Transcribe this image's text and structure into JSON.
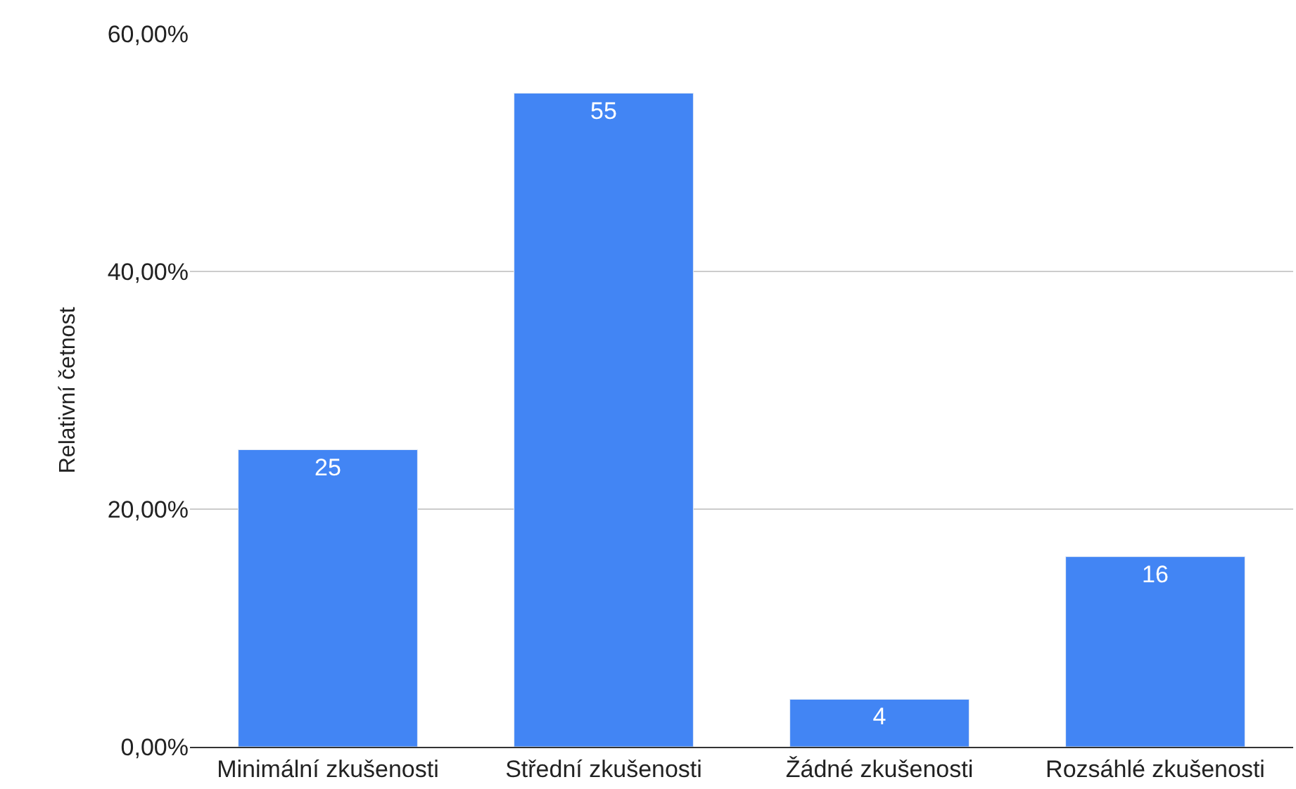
{
  "chart_data": {
    "type": "bar",
    "ylabel": "Relativní četnost",
    "categories": [
      "Minimální zkušenosti",
      "Střední zkušenosti",
      "Žádné zkušenosti",
      "Rozsáhlé zkušenosti"
    ],
    "values": [
      25,
      55,
      4,
      16
    ],
    "color": "#4285f4",
    "data_labels": true,
    "grid": "y",
    "legend": false,
    "ylim": [
      0,
      60
    ],
    "yticks": [
      {
        "value": 0,
        "label": "0,00%"
      },
      {
        "value": 20,
        "label": "20,00%"
      },
      {
        "value": 40,
        "label": "40,00%"
      },
      {
        "value": 60,
        "label": "60,00%"
      }
    ]
  }
}
